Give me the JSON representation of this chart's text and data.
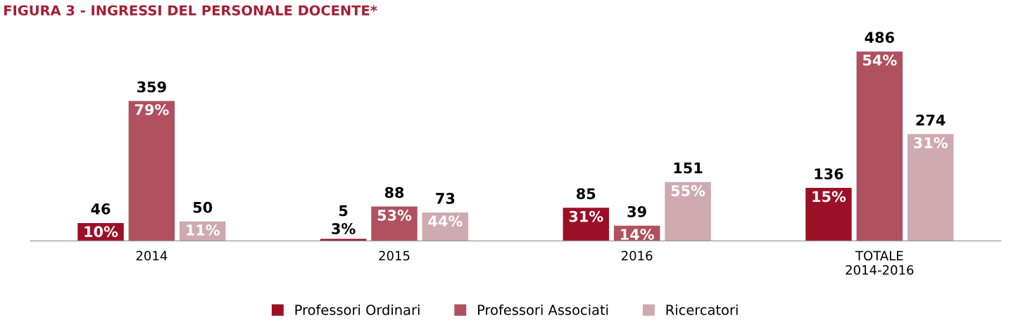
{
  "chart_data": {
    "type": "bar",
    "title": "FIGURA 3 - INGRESSI DEL PERSONALE DOCENTE*",
    "categories": [
      "2014",
      "2015",
      "2016",
      "TOTALE\n2014-2016"
    ],
    "series": [
      {
        "name": "Professori Ordinari",
        "color": "#9c1027",
        "values": [
          46,
          5,
          85,
          136
        ]
      },
      {
        "name": "Professori Associati",
        "color": "#b0515f",
        "values": [
          359,
          88,
          39,
          486
        ]
      },
      {
        "name": "Ricercatori",
        "color": "#cfaab0",
        "values": [
          50,
          73,
          151,
          274
        ]
      }
    ],
    "annotations": [
      "10%",
      "79%",
      "11%",
      "3%",
      "53%",
      "44%",
      "31%",
      "14%",
      "55%",
      "15%",
      "54%",
      "31%"
    ],
    "data_labels": true,
    "legend": "bottom",
    "grid": false
  }
}
